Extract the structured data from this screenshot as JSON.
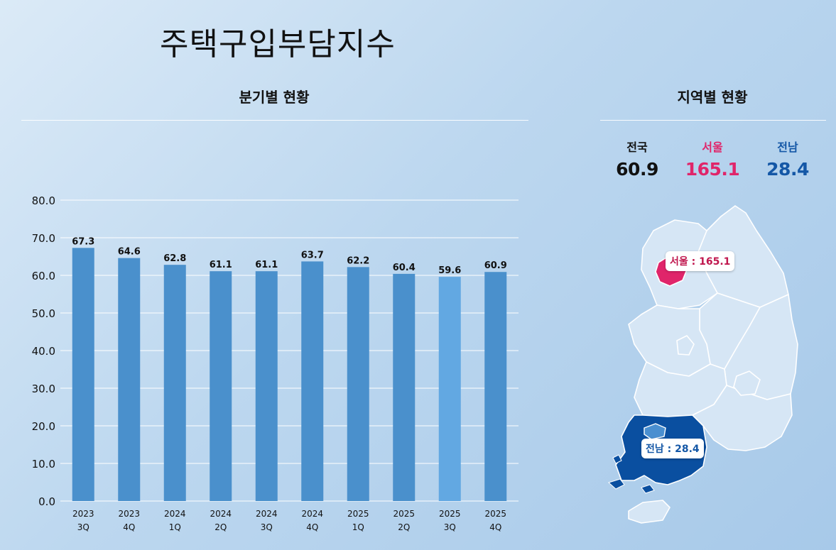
{
  "title": "주택구입부담지수",
  "left_section_title": "분기별 현황",
  "right_section_title": "지역별 현황",
  "stats": [
    {
      "label": "전국",
      "value": "60.9",
      "color": "#111111"
    },
    {
      "label": "서울",
      "value": "165.1",
      "color": "#e0256a"
    },
    {
      "label": "전남",
      "value": "28.4",
      "color": "#1457a6"
    }
  ],
  "map": {
    "seoul_callout": "서울 : 165.1",
    "jeonnam_callout": "전남 : 28.4",
    "seoul_color": "#e0256a",
    "jeonnam_color": "#0a4fa0",
    "base_color": "#d6e6f5"
  },
  "chart_data": {
    "type": "bar",
    "categories": [
      "2023\n3Q",
      "2023\n4Q",
      "2024\n1Q",
      "2024\n2Q",
      "2024\n3Q",
      "2024\n4Q",
      "2025\n1Q",
      "2025\n2Q",
      "2025\n3Q",
      "2025\n4Q"
    ],
    "values": [
      67.3,
      64.6,
      62.8,
      61.1,
      61.1,
      63.7,
      62.2,
      60.4,
      59.6,
      60.9
    ],
    "data_labels": [
      "67.3",
      "64.6",
      "62.8",
      "61.1",
      "61.1",
      "63.7",
      "62.2",
      "60.4",
      "59.6",
      "60.9"
    ],
    "yticks": [
      "0.0",
      "10.0",
      "20.0",
      "30.0",
      "40.0",
      "50.0",
      "60.0",
      "70.0",
      "80.0"
    ],
    "ylim": [
      0,
      80
    ],
    "grid": true,
    "bar_color": "#4a90cc",
    "highlight_index": 8,
    "highlight_color": "#62a8e2"
  }
}
